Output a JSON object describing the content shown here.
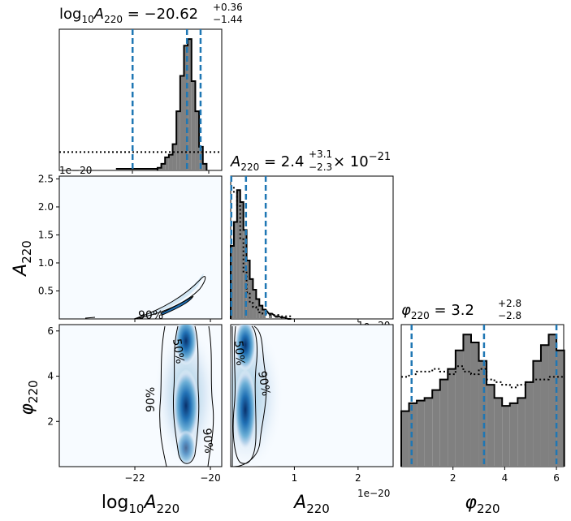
{
  "chart_data": {
    "type": "corner-plot",
    "params": [
      "log10A220",
      "A220",
      "phi220"
    ],
    "titles": {
      "log10A220": {
        "lhs": "log",
        "sub": "10",
        "A": "A",
        "Asub": "220",
        "value": "−20.62",
        "plus": "+0.36",
        "minus": "−1.44"
      },
      "A220": {
        "A": "A",
        "Asub": "220",
        "value": "2.4",
        "plus": "+3.1",
        "minus": "−2.3",
        "times": "× 10",
        "exp": "−21"
      },
      "phi220": {
        "sym": "φ",
        "sub": "220",
        "value": "3.2",
        "plus": "+2.8",
        "minus": "−2.8"
      }
    },
    "axis_labels": {
      "x_log10A220": {
        "pre": "log",
        "sub1": "10",
        "A": "A",
        "sub2": "220"
      },
      "x_A220": {
        "A": "A",
        "sub": "220"
      },
      "x_phi220": {
        "sym": "φ",
        "sub": "220"
      },
      "y_A220": {
        "A": "A",
        "sub": "220"
      },
      "y_phi220": {
        "sym": "φ",
        "sub": "220"
      }
    },
    "offset_text": "1e−20",
    "ticks": {
      "log10A220": {
        "values": [
          -22,
          -20
        ],
        "labels": [
          "−22",
          "−20"
        ]
      },
      "A220_x": {
        "values": [
          1,
          2
        ],
        "labels": [
          "1",
          "2"
        ]
      },
      "A220_y": {
        "values": [
          0.5,
          1.0,
          1.5,
          2.0,
          2.5
        ],
        "labels": [
          "0.5",
          "1.0",
          "1.5",
          "2.0",
          "2.5"
        ]
      },
      "phi220": {
        "values": [
          2,
          4,
          6
        ],
        "labels": [
          "2",
          "4",
          "6"
        ]
      }
    },
    "ranges": {
      "log10A220": [
        -24.0,
        -19.7
      ],
      "A220": [
        0,
        2.55
      ],
      "phi220": [
        0,
        6.28
      ]
    },
    "quantile_lines": {
      "log10A220": [
        -22.06,
        -20.62,
        -20.26
      ],
      "A220": [
        0.01,
        0.24,
        0.55
      ],
      "phi220": [
        0.4,
        3.2,
        6.0
      ]
    },
    "hist_log10A220": {
      "bins": [
        -21.4,
        -21.3,
        -21.2,
        -21.1,
        -21.0,
        -20.9,
        -20.8,
        -20.7,
        -20.6,
        -20.5,
        -20.4,
        -20.3,
        -20.2
      ],
      "posterior": [
        0.02,
        0.05,
        0.1,
        0.12,
        0.2,
        0.45,
        0.72,
        0.95,
        1.0,
        0.68,
        0.45,
        0.18,
        0.05
      ],
      "prior_level": 0.13
    },
    "hist_A220": {
      "bins": [
        0.0,
        0.05,
        0.1,
        0.15,
        0.2,
        0.25,
        0.3,
        0.35,
        0.4,
        0.45,
        0.5,
        0.6,
        0.7,
        0.8,
        0.9
      ],
      "posterior": [
        0.55,
        0.73,
        0.97,
        0.88,
        0.67,
        0.44,
        0.3,
        0.22,
        0.15,
        0.1,
        0.07,
        0.04,
        0.02,
        0.01,
        0.0
      ],
      "prior": [
        1.0,
        0.95,
        0.85,
        0.6,
        0.35,
        0.2,
        0.12,
        0.09,
        0.07,
        0.05,
        0.04,
        0.03,
        0.03,
        0.02,
        0.02
      ]
    },
    "hist_phi220": {
      "bins": [
        0.0,
        0.3,
        0.6,
        0.9,
        1.2,
        1.5,
        1.8,
        2.1,
        2.4,
        2.7,
        3.0,
        3.3,
        3.6,
        3.9,
        4.2,
        4.5,
        4.8,
        5.1,
        5.4,
        5.7,
        6.0
      ],
      "posterior": [
        0.42,
        0.48,
        0.5,
        0.52,
        0.58,
        0.66,
        0.74,
        0.88,
        1.0,
        0.94,
        0.8,
        0.62,
        0.52,
        0.46,
        0.48,
        0.52,
        0.64,
        0.8,
        0.92,
        1.0,
        0.88
      ],
      "prior": [
        0.68,
        0.7,
        0.72,
        0.72,
        0.74,
        0.72,
        0.7,
        0.76,
        0.72,
        0.7,
        0.74,
        0.66,
        0.64,
        0.62,
        0.6,
        0.62,
        0.64,
        0.66,
        0.66,
        0.68,
        0.68
      ]
    },
    "contour_labels": [
      "90%",
      "50%"
    ]
  }
}
